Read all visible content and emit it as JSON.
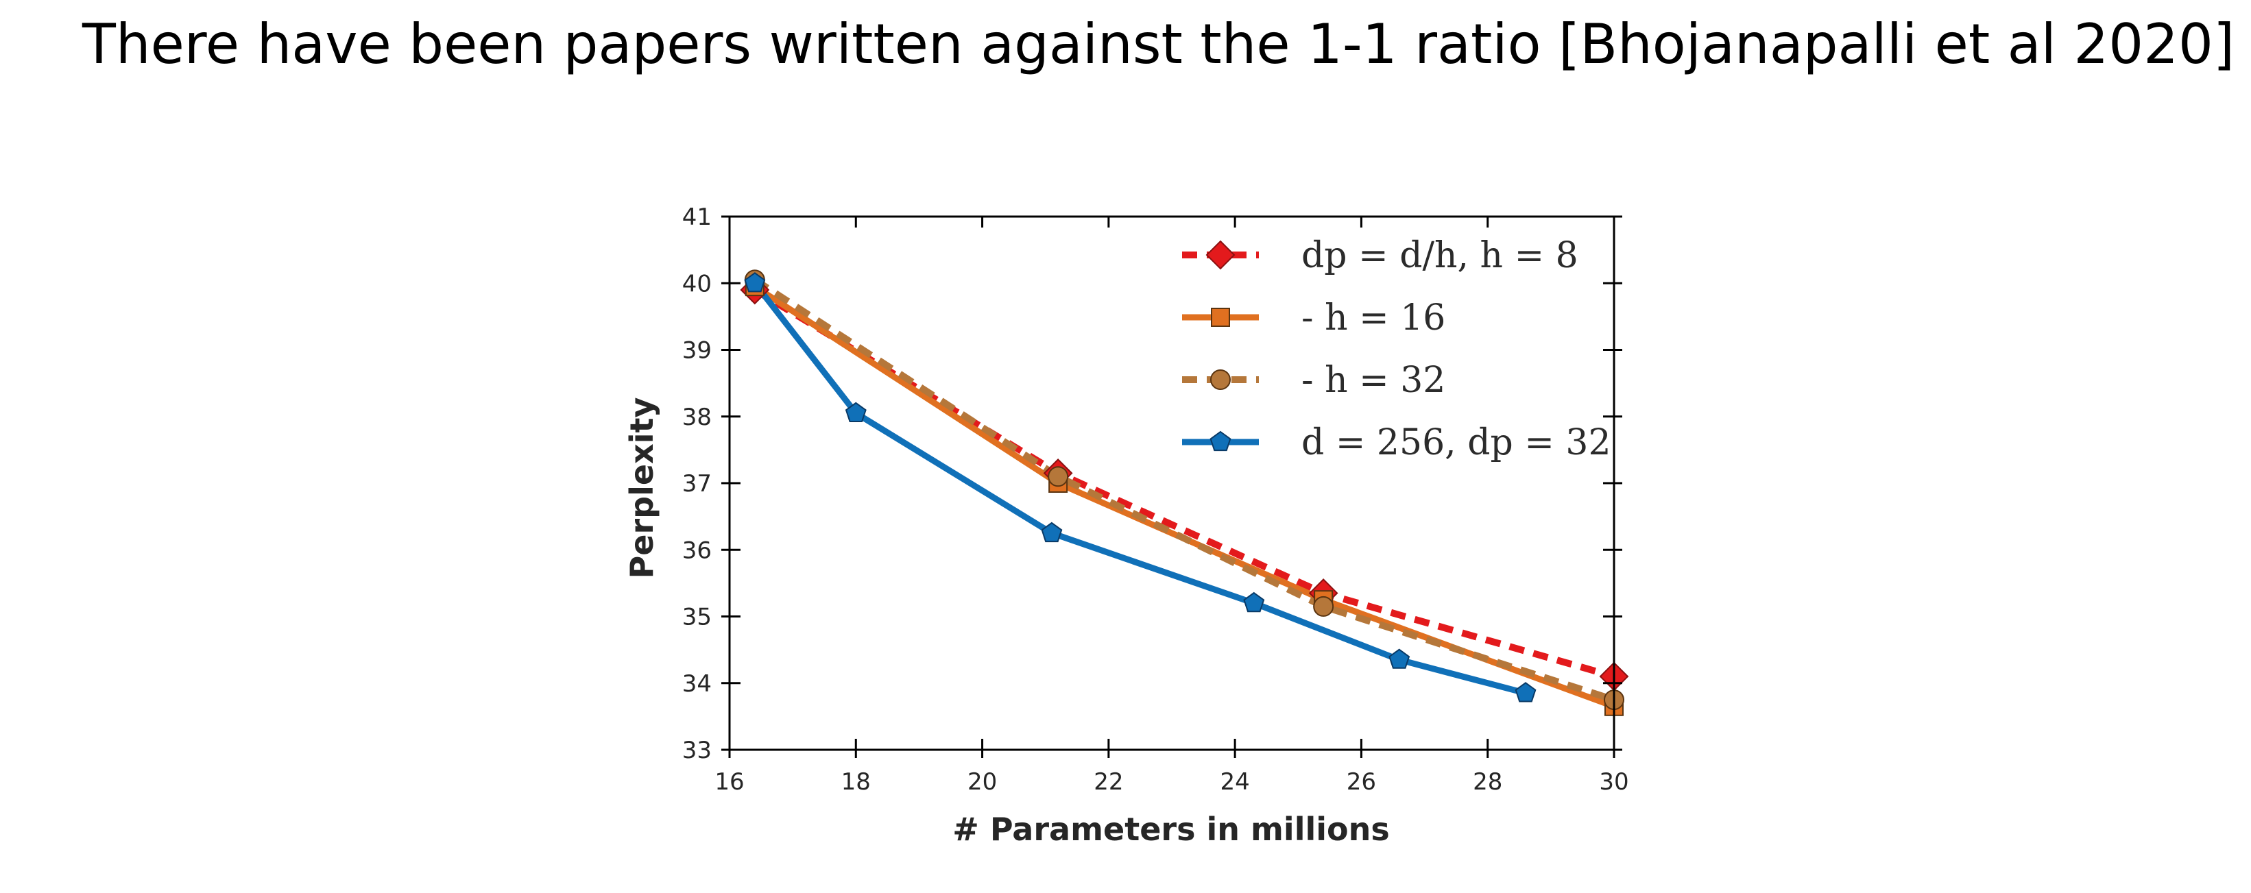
{
  "slide": {
    "title": "There have been papers written against the 1-1 ratio [Bhojanapalli et al 2020]"
  },
  "chart_data": {
    "type": "line",
    "title": "",
    "xlabel": "# Parameters in millions",
    "ylabel": "Perplexity",
    "xlim": [
      16,
      30
    ],
    "ylim": [
      33,
      41
    ],
    "xticks": [
      16,
      18,
      20,
      22,
      24,
      26,
      28,
      30
    ],
    "yticks": [
      33,
      34,
      35,
      36,
      37,
      38,
      39,
      40,
      41
    ],
    "grid": false,
    "legend_position": "top-right",
    "series": [
      {
        "name": "dp = d/h, h = 8",
        "color": "#e31a1c",
        "line_style": "dashed",
        "marker": "diamond",
        "x": [
          16.4,
          21.2,
          25.4,
          30.0
        ],
        "y": [
          39.9,
          37.15,
          35.35,
          34.1
        ]
      },
      {
        "name": "- h = 16",
        "color": "#e07020",
        "line_style": "solid",
        "marker": "square",
        "x": [
          16.4,
          21.2,
          25.4,
          30.0
        ],
        "y": [
          39.95,
          37.0,
          35.25,
          33.65
        ]
      },
      {
        "name": "- h = 32",
        "color": "#b5773a",
        "line_style": "dashed",
        "marker": "circle",
        "x": [
          16.4,
          21.2,
          25.4,
          30.0
        ],
        "y": [
          40.05,
          37.1,
          35.15,
          33.75
        ]
      },
      {
        "name": "d = 256, dp = 32",
        "color": "#1070b8",
        "line_style": "solid",
        "marker": "pentagon",
        "x": [
          16.4,
          18.0,
          21.1,
          24.3,
          26.6,
          28.6
        ],
        "y": [
          40.0,
          38.05,
          36.25,
          35.2,
          34.35,
          33.85
        ]
      }
    ]
  }
}
